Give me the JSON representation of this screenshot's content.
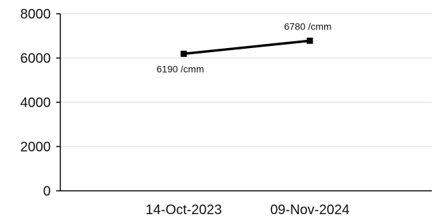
{
  "chart_data": {
    "type": "line",
    "x": [
      "14-Oct-2023",
      "09-Nov-2024"
    ],
    "series": [
      {
        "values": [
          6190,
          6780
        ],
        "data_labels": [
          "6190 /cmm",
          "6780 /cmm"
        ]
      }
    ],
    "y_ticks": [
      0,
      2000,
      4000,
      6000,
      8000
    ],
    "ylim": [
      0,
      8000
    ],
    "grid": true,
    "legend": "none",
    "colors": {
      "line": "#000000",
      "grid": "#e6e6e6",
      "axis": "#000000",
      "text": "#111111"
    }
  }
}
